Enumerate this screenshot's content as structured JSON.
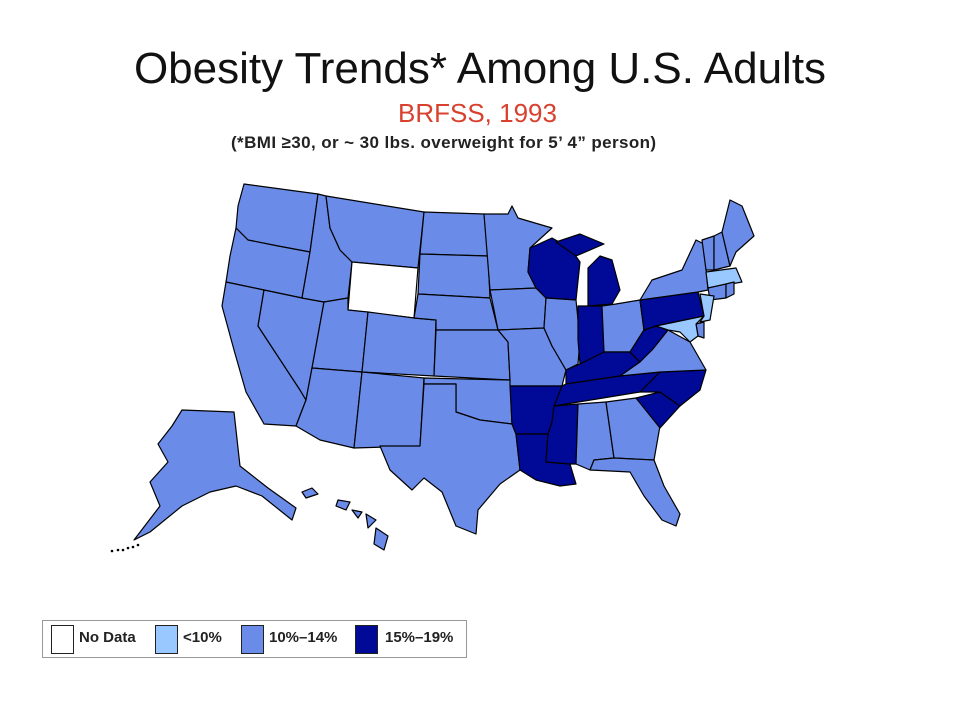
{
  "title": "Obesity Trends* Among U.S. Adults",
  "subtitle": "BRFSS, 1993",
  "note": "(*BMI ≥30, or ~ 30 lbs. overweight for 5’ 4” person)",
  "legend": [
    {
      "label": "No Data",
      "color": "#ffffff"
    },
    {
      "label": "<10%",
      "color": "#99c7ff"
    },
    {
      "label": "10%–14%",
      "color": "#6a8ce8"
    },
    {
      "label": "15%–19%",
      "color": "#000a96"
    }
  ],
  "map_colors": {
    "no_data": "#ffffff",
    "lt10": "#99c7ff",
    "p10_14": "#6a8ce8",
    "p15_19": "#000a96"
  },
  "states": {
    "WA": "p10_14",
    "OR": "p10_14",
    "CA": "p10_14",
    "NV": "p10_14",
    "ID": "p10_14",
    "MT": "p10_14",
    "WY": "no_data",
    "UT": "p10_14",
    "CO": "p10_14",
    "AZ": "p10_14",
    "NM": "p10_14",
    "ND": "p10_14",
    "SD": "p10_14",
    "NE": "p10_14",
    "KS": "p10_14",
    "OK": "p10_14",
    "TX": "p10_14",
    "MN": "p10_14",
    "IA": "p10_14",
    "MO": "p10_14",
    "AR": "p15_19",
    "LA": "p15_19",
    "WI": "p15_19",
    "IL": "p10_14",
    "MI": "p15_19",
    "IN": "p15_19",
    "OH": "p10_14",
    "KY": "p15_19",
    "TN": "p15_19",
    "MS": "p15_19",
    "AL": "p10_14",
    "GA": "p10_14",
    "FL": "p10_14",
    "SC": "p15_19",
    "NC": "p15_19",
    "VA": "p10_14",
    "WV": "p15_19",
    "PA": "p15_19",
    "NY": "p10_14",
    "VT": "p10_14",
    "NH": "p10_14",
    "ME": "p10_14",
    "MA": "lt10",
    "RI": "p10_14",
    "CT": "p10_14",
    "NJ": "lt10",
    "DE": "p10_14",
    "MD": "lt10",
    "AK": "p10_14",
    "HI": "p10_14"
  }
}
